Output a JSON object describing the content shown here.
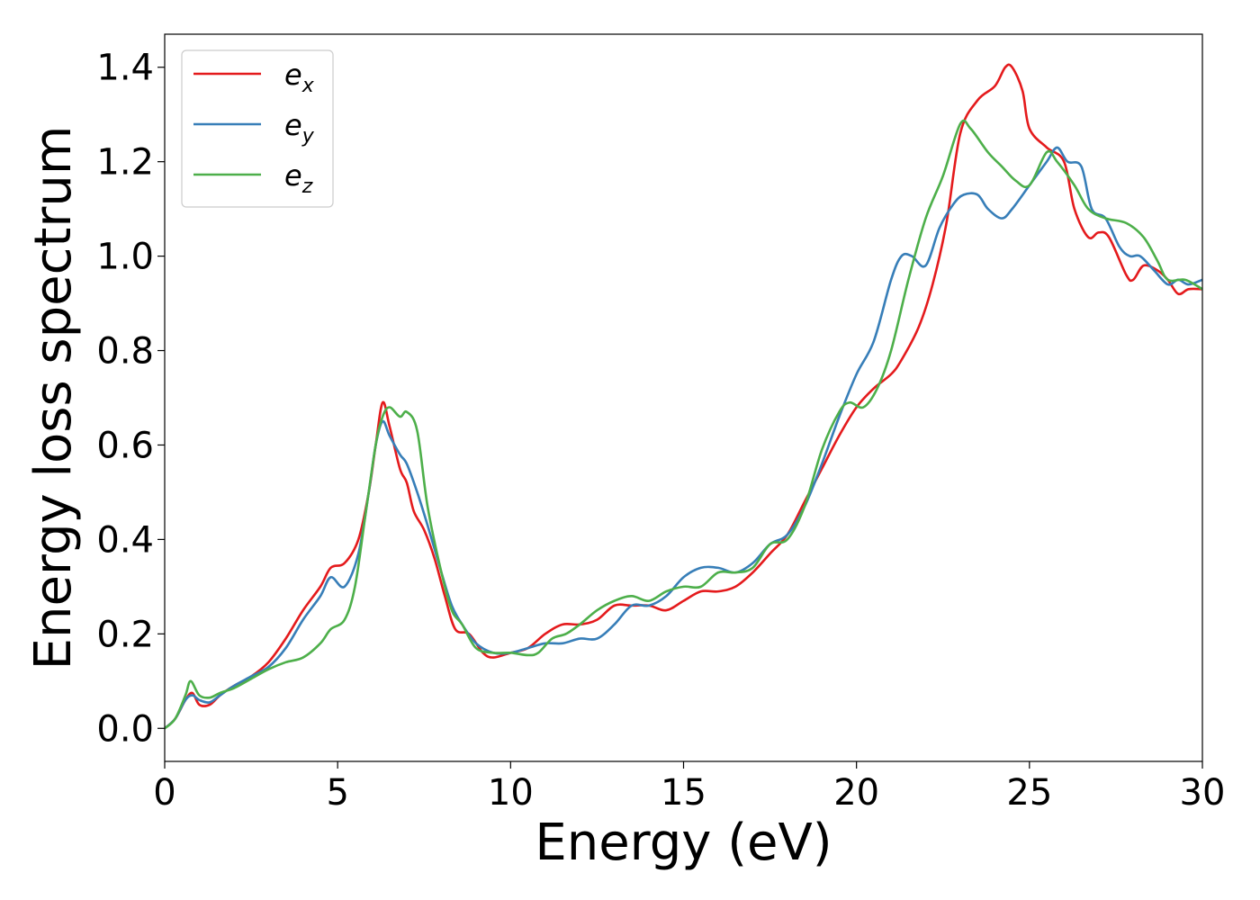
{
  "chart_data": {
    "type": "line",
    "title": "",
    "xlabel": "Energy (eV)",
    "ylabel": "Energy loss spectrum",
    "xlim": [
      0,
      30
    ],
    "ylim": [
      -0.07,
      1.47
    ],
    "xticks": [
      0,
      5,
      10,
      15,
      20,
      25,
      30
    ],
    "xtick_labels": [
      "0",
      "5",
      "10",
      "15",
      "20",
      "25",
      "30"
    ],
    "yticks": [
      0.0,
      0.2,
      0.4,
      0.6,
      0.8,
      1.0,
      1.2,
      1.4
    ],
    "ytick_labels": [
      "0.0",
      "0.2",
      "0.4",
      "0.6",
      "0.8",
      "1.0",
      "1.2",
      "1.4"
    ],
    "grid": false,
    "legend_position": "top-left",
    "series": [
      {
        "name": "e",
        "subscript": "x",
        "color": "#e41a1c",
        "points": [
          [
            0,
            0.0
          ],
          [
            0.3,
            0.02
          ],
          [
            0.6,
            0.06
          ],
          [
            0.8,
            0.075
          ],
          [
            1.0,
            0.05
          ],
          [
            1.3,
            0.05
          ],
          [
            1.6,
            0.07
          ],
          [
            2.0,
            0.09
          ],
          [
            2.5,
            0.11
          ],
          [
            3.0,
            0.14
          ],
          [
            3.5,
            0.19
          ],
          [
            4.0,
            0.25
          ],
          [
            4.5,
            0.3
          ],
          [
            4.8,
            0.34
          ],
          [
            5.2,
            0.35
          ],
          [
            5.6,
            0.4
          ],
          [
            5.9,
            0.5
          ],
          [
            6.1,
            0.6
          ],
          [
            6.3,
            0.69
          ],
          [
            6.5,
            0.64
          ],
          [
            6.8,
            0.55
          ],
          [
            7.0,
            0.52
          ],
          [
            7.2,
            0.46
          ],
          [
            7.5,
            0.42
          ],
          [
            7.8,
            0.36
          ],
          [
            8.1,
            0.28
          ],
          [
            8.4,
            0.21
          ],
          [
            8.8,
            0.2
          ],
          [
            9.2,
            0.16
          ],
          [
            9.5,
            0.15
          ],
          [
            10.0,
            0.16
          ],
          [
            10.5,
            0.17
          ],
          [
            11.0,
            0.2
          ],
          [
            11.5,
            0.22
          ],
          [
            12.0,
            0.22
          ],
          [
            12.5,
            0.23
          ],
          [
            13.0,
            0.26
          ],
          [
            13.5,
            0.26
          ],
          [
            14.0,
            0.26
          ],
          [
            14.5,
            0.25
          ],
          [
            15.0,
            0.27
          ],
          [
            15.5,
            0.29
          ],
          [
            16.0,
            0.29
          ],
          [
            16.5,
            0.3
          ],
          [
            17.0,
            0.33
          ],
          [
            17.5,
            0.37
          ],
          [
            18.0,
            0.41
          ],
          [
            18.5,
            0.48
          ],
          [
            19.0,
            0.55
          ],
          [
            19.5,
            0.62
          ],
          [
            20.0,
            0.68
          ],
          [
            20.5,
            0.72
          ],
          [
            21.0,
            0.75
          ],
          [
            21.3,
            0.78
          ],
          [
            21.8,
            0.85
          ],
          [
            22.2,
            0.94
          ],
          [
            22.6,
            1.07
          ],
          [
            23.0,
            1.26
          ],
          [
            23.5,
            1.33
          ],
          [
            24.0,
            1.36
          ],
          [
            24.3,
            1.4
          ],
          [
            24.5,
            1.4
          ],
          [
            24.8,
            1.35
          ],
          [
            25.0,
            1.27
          ],
          [
            25.5,
            1.23
          ],
          [
            26.0,
            1.2
          ],
          [
            26.3,
            1.1
          ],
          [
            26.7,
            1.04
          ],
          [
            27.0,
            1.05
          ],
          [
            27.3,
            1.04
          ],
          [
            27.8,
            0.96
          ],
          [
            28.0,
            0.95
          ],
          [
            28.3,
            0.98
          ],
          [
            28.7,
            0.97
          ],
          [
            29.0,
            0.95
          ],
          [
            29.3,
            0.92
          ],
          [
            29.6,
            0.93
          ],
          [
            30.0,
            0.93
          ]
        ]
      },
      {
        "name": "e",
        "subscript": "y",
        "color": "#377eb8",
        "points": [
          [
            0,
            0.0
          ],
          [
            0.3,
            0.02
          ],
          [
            0.6,
            0.06
          ],
          [
            0.8,
            0.07
          ],
          [
            1.0,
            0.06
          ],
          [
            1.3,
            0.055
          ],
          [
            1.6,
            0.07
          ],
          [
            2.0,
            0.09
          ],
          [
            2.5,
            0.11
          ],
          [
            3.0,
            0.13
          ],
          [
            3.5,
            0.17
          ],
          [
            4.0,
            0.23
          ],
          [
            4.5,
            0.28
          ],
          [
            4.8,
            0.32
          ],
          [
            5.2,
            0.3
          ],
          [
            5.6,
            0.37
          ],
          [
            5.9,
            0.5
          ],
          [
            6.1,
            0.6
          ],
          [
            6.3,
            0.65
          ],
          [
            6.5,
            0.62
          ],
          [
            6.8,
            0.58
          ],
          [
            7.0,
            0.56
          ],
          [
            7.3,
            0.5
          ],
          [
            7.6,
            0.43
          ],
          [
            8.0,
            0.33
          ],
          [
            8.3,
            0.26
          ],
          [
            8.6,
            0.22
          ],
          [
            9.0,
            0.18
          ],
          [
            9.5,
            0.16
          ],
          [
            10.0,
            0.16
          ],
          [
            10.5,
            0.17
          ],
          [
            11.0,
            0.18
          ],
          [
            11.5,
            0.18
          ],
          [
            12.0,
            0.19
          ],
          [
            12.5,
            0.19
          ],
          [
            13.0,
            0.22
          ],
          [
            13.5,
            0.26
          ],
          [
            14.0,
            0.26
          ],
          [
            14.5,
            0.28
          ],
          [
            15.0,
            0.32
          ],
          [
            15.5,
            0.34
          ],
          [
            16.0,
            0.34
          ],
          [
            16.5,
            0.33
          ],
          [
            17.0,
            0.35
          ],
          [
            17.5,
            0.39
          ],
          [
            18.0,
            0.41
          ],
          [
            18.5,
            0.47
          ],
          [
            19.0,
            0.56
          ],
          [
            19.5,
            0.66
          ],
          [
            20.0,
            0.75
          ],
          [
            20.5,
            0.82
          ],
          [
            21.0,
            0.95
          ],
          [
            21.3,
            1.0
          ],
          [
            21.6,
            1.0
          ],
          [
            22.0,
            0.98
          ],
          [
            22.4,
            1.06
          ],
          [
            22.8,
            1.11
          ],
          [
            23.1,
            1.13
          ],
          [
            23.5,
            1.13
          ],
          [
            23.8,
            1.1
          ],
          [
            24.2,
            1.08
          ],
          [
            24.5,
            1.1
          ],
          [
            25.0,
            1.15
          ],
          [
            25.5,
            1.2
          ],
          [
            25.8,
            1.23
          ],
          [
            26.1,
            1.2
          ],
          [
            26.5,
            1.19
          ],
          [
            26.8,
            1.1
          ],
          [
            27.2,
            1.08
          ],
          [
            27.6,
            1.02
          ],
          [
            27.9,
            1.0
          ],
          [
            28.2,
            1.0
          ],
          [
            28.6,
            0.97
          ],
          [
            29.0,
            0.94
          ],
          [
            29.3,
            0.95
          ],
          [
            29.6,
            0.94
          ],
          [
            30.0,
            0.95
          ]
        ]
      },
      {
        "name": "e",
        "subscript": "z",
        "color": "#4daf4a",
        "points": [
          [
            0,
            0.0
          ],
          [
            0.3,
            0.02
          ],
          [
            0.6,
            0.07
          ],
          [
            0.75,
            0.1
          ],
          [
            1.0,
            0.07
          ],
          [
            1.3,
            0.065
          ],
          [
            1.6,
            0.075
          ],
          [
            2.0,
            0.085
          ],
          [
            2.5,
            0.105
          ],
          [
            3.0,
            0.125
          ],
          [
            3.5,
            0.14
          ],
          [
            4.0,
            0.15
          ],
          [
            4.5,
            0.18
          ],
          [
            4.8,
            0.21
          ],
          [
            5.2,
            0.23
          ],
          [
            5.5,
            0.3
          ],
          [
            5.8,
            0.45
          ],
          [
            6.1,
            0.6
          ],
          [
            6.3,
            0.66
          ],
          [
            6.5,
            0.68
          ],
          [
            6.8,
            0.66
          ],
          [
            7.0,
            0.67
          ],
          [
            7.3,
            0.63
          ],
          [
            7.6,
            0.47
          ],
          [
            8.0,
            0.33
          ],
          [
            8.3,
            0.25
          ],
          [
            8.6,
            0.22
          ],
          [
            9.0,
            0.17
          ],
          [
            9.5,
            0.16
          ],
          [
            10.0,
            0.16
          ],
          [
            10.5,
            0.155
          ],
          [
            10.8,
            0.16
          ],
          [
            11.2,
            0.19
          ],
          [
            11.6,
            0.2
          ],
          [
            12.0,
            0.22
          ],
          [
            12.5,
            0.25
          ],
          [
            13.0,
            0.27
          ],
          [
            13.5,
            0.28
          ],
          [
            14.0,
            0.27
          ],
          [
            14.5,
            0.29
          ],
          [
            15.0,
            0.3
          ],
          [
            15.5,
            0.3
          ],
          [
            16.0,
            0.33
          ],
          [
            16.5,
            0.33
          ],
          [
            17.0,
            0.34
          ],
          [
            17.5,
            0.39
          ],
          [
            18.0,
            0.4
          ],
          [
            18.5,
            0.47
          ],
          [
            19.0,
            0.59
          ],
          [
            19.5,
            0.67
          ],
          [
            19.8,
            0.69
          ],
          [
            20.2,
            0.68
          ],
          [
            20.6,
            0.72
          ],
          [
            21.0,
            0.8
          ],
          [
            21.5,
            0.95
          ],
          [
            22.0,
            1.08
          ],
          [
            22.5,
            1.17
          ],
          [
            23.0,
            1.28
          ],
          [
            23.3,
            1.27
          ],
          [
            23.8,
            1.22
          ],
          [
            24.2,
            1.19
          ],
          [
            24.6,
            1.16
          ],
          [
            25.0,
            1.15
          ],
          [
            25.5,
            1.22
          ],
          [
            25.8,
            1.2
          ],
          [
            26.3,
            1.15
          ],
          [
            26.7,
            1.1
          ],
          [
            27.2,
            1.08
          ],
          [
            27.8,
            1.07
          ],
          [
            28.3,
            1.04
          ],
          [
            28.7,
            0.99
          ],
          [
            29.0,
            0.95
          ],
          [
            29.5,
            0.95
          ],
          [
            30.0,
            0.93
          ]
        ]
      }
    ]
  }
}
